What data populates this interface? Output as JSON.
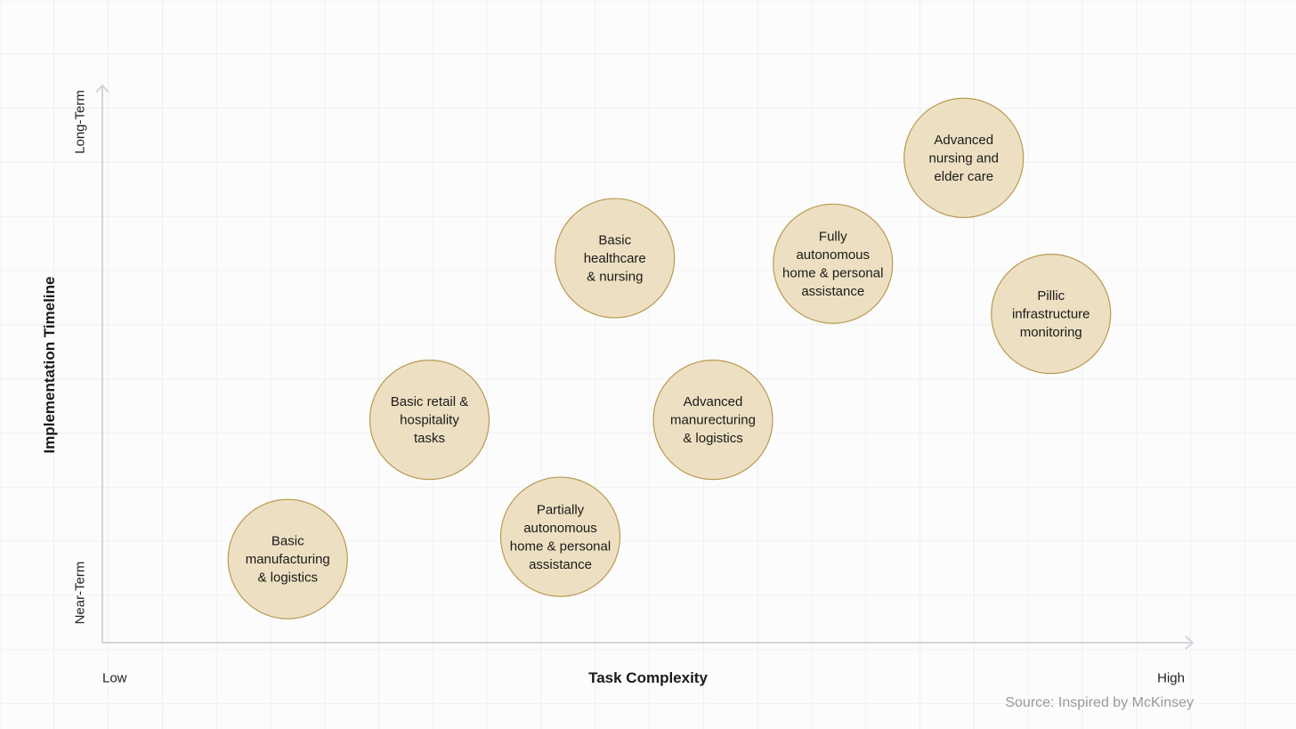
{
  "chart_data": {
    "type": "scatter",
    "title": "",
    "xlabel": "Task Complexity",
    "ylabel": "Implementation Timeline",
    "x_ticks": {
      "low": "Low",
      "high": "High"
    },
    "y_ticks": {
      "low": "Near-Term",
      "high": "Long-Term"
    },
    "xlim": [
      0,
      100
    ],
    "ylim": [
      0,
      100
    ],
    "source": "Source: Inspired by McKinsey",
    "points": [
      {
        "label": [
          "Basic",
          "manufacturing",
          "& logistics"
        ],
        "x": 17,
        "y": 15
      },
      {
        "label": [
          "Basic retail &",
          "hospitality",
          "tasks"
        ],
        "x": 30,
        "y": 40
      },
      {
        "label": [
          "Partially",
          "autonomous",
          "home & personal",
          "assistance"
        ],
        "x": 42,
        "y": 19
      },
      {
        "label": [
          "Basic",
          "healthcare",
          "& nursing"
        ],
        "x": 47,
        "y": 69
      },
      {
        "label": [
          "Advanced",
          "manurecturing",
          "& logistics"
        ],
        "x": 56,
        "y": 40
      },
      {
        "label": [
          "Fully",
          "autonomous",
          "home & personal",
          "assistance"
        ],
        "x": 67,
        "y": 68
      },
      {
        "label": [
          "Advanced",
          "nursing and",
          "elder care"
        ],
        "x": 79,
        "y": 87
      },
      {
        "label": [
          "Pillic",
          "infrastructure",
          "monitoring"
        ],
        "x": 87,
        "y": 59
      }
    ],
    "colors": {
      "bubble_fill": "#ede0c2",
      "bubble_stroke": "#b89a52",
      "axis": "#d3d3dc",
      "grid": "#efeff2"
    }
  }
}
